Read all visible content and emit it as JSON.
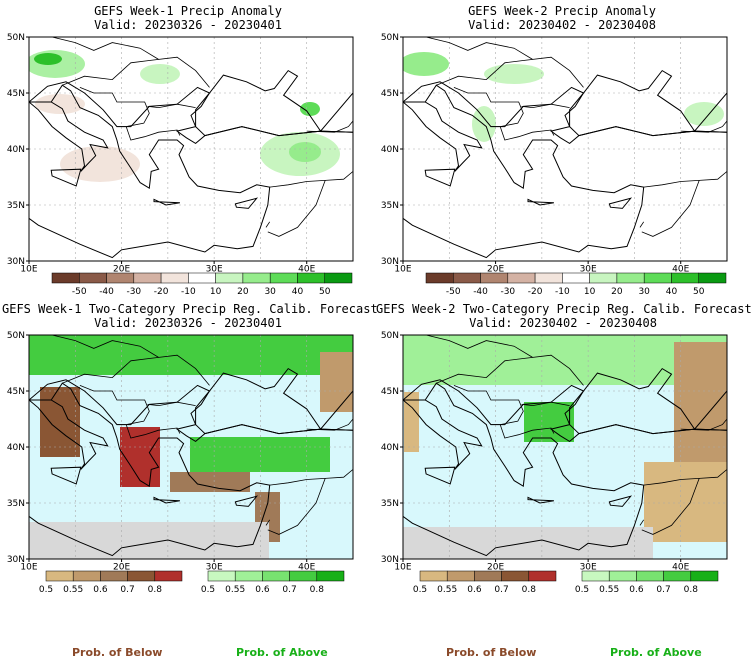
{
  "panels": [
    {
      "title": "GEFS Week-1 Precip Anomaly",
      "valid": "Valid: 20230326 - 20230401"
    },
    {
      "title": "GEFS Week-2 Precip Anomaly",
      "valid": "Valid: 20230402 - 20230408"
    },
    {
      "title": "GEFS Week-1 Two-Category Precip Reg. Calib. Forecast",
      "valid": "Valid: 20230326 - 20230401"
    },
    {
      "title": "GEFS Week-2 Two-Category Precip Reg. Calib. Forecast",
      "valid": "Valid: 20230402 - 20230408"
    }
  ],
  "axes": {
    "lat_labels": [
      "30N",
      "35N",
      "40N",
      "45N",
      "50N"
    ],
    "lon_labels": [
      "10E",
      "20E",
      "30E",
      "40E"
    ]
  },
  "anomaly_colorbar": {
    "labels": [
      "-50",
      "-40",
      "-30",
      "-20",
      "-10",
      "10",
      "20",
      "30",
      "40",
      "50"
    ],
    "colors": [
      "#6b3b2a",
      "#8a5a48",
      "#b08570",
      "#d4b2a4",
      "#f2e4dc",
      "#ffffff",
      "#c8f5c0",
      "#96ec8c",
      "#5edc58",
      "#2dc02a",
      "#0a9a12"
    ]
  },
  "below_colorbar": {
    "labels": [
      "0.5",
      "0.55",
      "0.6",
      "0.7",
      "0.8"
    ],
    "colors": [
      "#d8b880",
      "#c09a6c",
      "#a07a58",
      "#8a5634",
      "#b0302c"
    ]
  },
  "above_colorbar": {
    "labels": [
      "0.5",
      "0.55",
      "0.6",
      "0.7",
      "0.8"
    ],
    "colors": [
      "#c8f8c0",
      "#a0f098",
      "#78e270",
      "#44cc40",
      "#18b018"
    ]
  },
  "footer": {
    "below": "Prob. of Below",
    "above": "Prob. of Above",
    "below_color": "#8a4a2a",
    "above_color": "#18b018"
  }
}
